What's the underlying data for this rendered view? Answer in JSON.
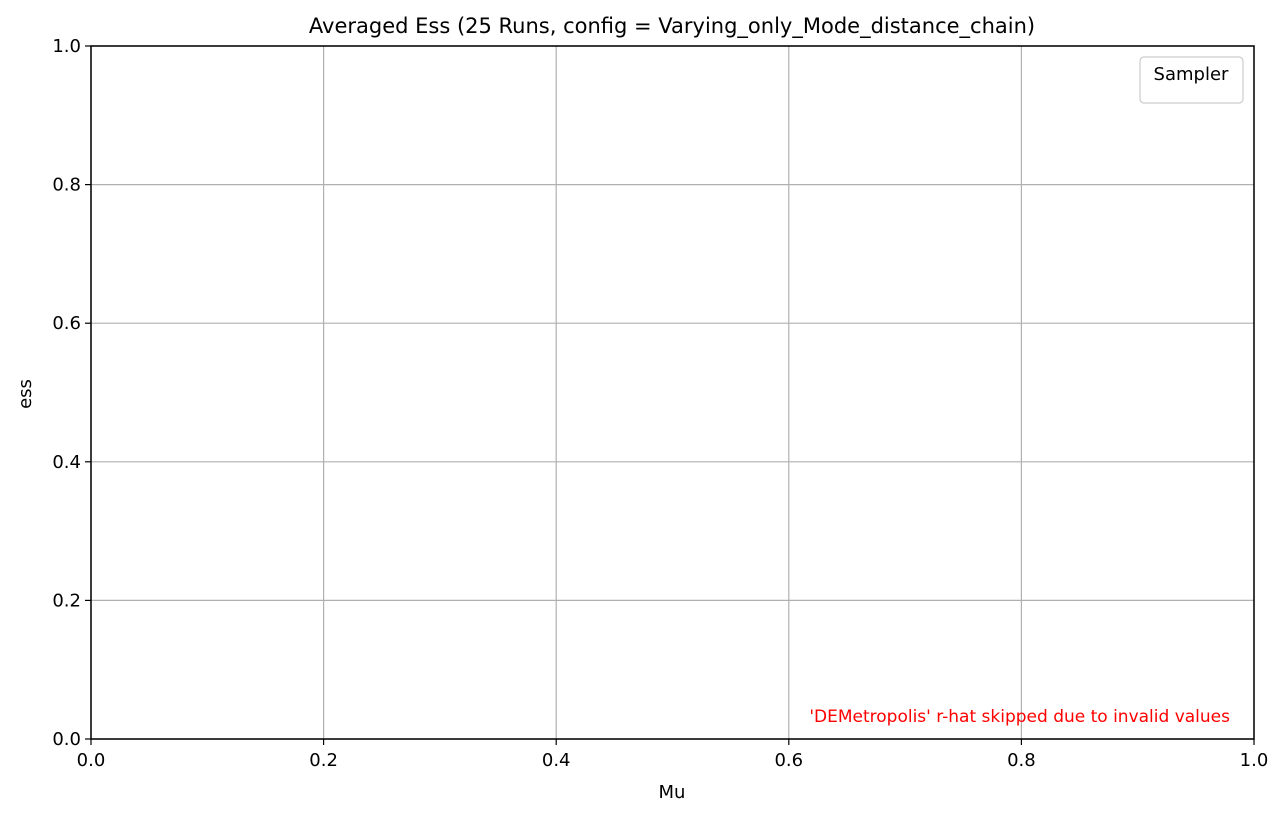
{
  "chart_data": {
    "type": "line",
    "title": "Averaged Ess (25 Runs, config = Varying_only_Mode_distance_chain)",
    "xlabel": "Mu",
    "ylabel": "ess",
    "xlim": [
      0.0,
      1.0
    ],
    "ylim": [
      0.0,
      1.0
    ],
    "x_ticks": [
      0.0,
      0.2,
      0.4,
      0.6,
      0.8,
      1.0
    ],
    "y_ticks": [
      0.0,
      0.2,
      0.4,
      0.6,
      0.8,
      1.0
    ],
    "x_tick_labels": [
      "0.0",
      "0.2",
      "0.4",
      "0.6",
      "0.8",
      "1.0"
    ],
    "y_tick_labels": [
      "0.0",
      "0.2",
      "0.4",
      "0.6",
      "0.8",
      "1.0"
    ],
    "grid": true,
    "series": [],
    "legend": {
      "title": "Sampler",
      "placement": "top-right",
      "entries": []
    },
    "annotations": [
      {
        "text": "'DEMetropolis' r-hat skipped due to invalid values",
        "color": "#ff0000",
        "placement": "bottom-right"
      }
    ]
  }
}
